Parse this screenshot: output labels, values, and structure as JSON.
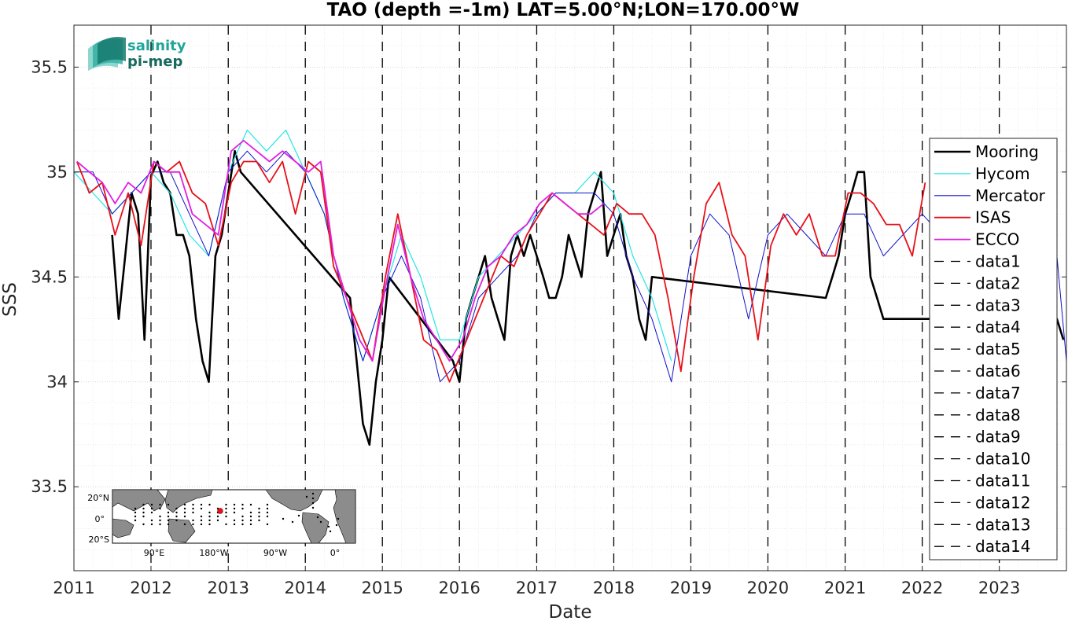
{
  "chart_data": {
    "type": "line",
    "title": "TAO (depth =-1m) LAT=5.00°N;LON=170.00°W",
    "xlabel": "Date",
    "ylabel": "SSS",
    "xlim": [
      "2011-01-01",
      "2023-11-15"
    ],
    "ylim": [
      33.1,
      35.7
    ],
    "x_ticks": [
      "2011",
      "2012",
      "2013",
      "2014",
      "2015",
      "2016",
      "2017",
      "2018",
      "2019",
      "2020",
      "2021",
      "2022",
      "2023"
    ],
    "y_ticks": [
      "33.5",
      "34",
      "34.5",
      "35",
      "35.5"
    ],
    "grid": true,
    "legend_position": "right",
    "legend": [
      "Mooring",
      "Hycom",
      "Mercator",
      "ISAS",
      "ECCO",
      "data1",
      "data2",
      "data3",
      "data4",
      "data5",
      "data6",
      "data7",
      "data8",
      "data9",
      "data10",
      "data11",
      "data12",
      "data13",
      "data14"
    ],
    "vertical_markers": [
      "2012-01-01",
      "2013-01-01",
      "2014-01-01",
      "2015-01-01",
      "2016-01-01",
      "2017-01-01",
      "2018-01-01",
      "2019-01-01",
      "2020-01-01",
      "2021-01-01",
      "2022-01-01",
      "2023-01-01"
    ],
    "series": [
      {
        "name": "Mooring",
        "color": "#000000",
        "x": [
          "2011-07-01",
          "2011-08-01",
          "2011-09-01",
          "2011-10-01",
          "2011-11-01",
          "2011-12-01",
          "2012-01-01",
          "2012-02-01",
          "2012-03-01",
          "2012-04-01",
          "2012-05-01",
          "2012-06-01",
          "2012-07-01",
          "2012-08-01",
          "2012-09-01",
          "2012-10-01",
          "2012-11-01",
          "2012-12-01",
          "2013-01-01",
          "2013-02-01",
          "2013-03-01",
          "2014-08-01",
          "2014-09-01",
          "2014-10-01",
          "2014-11-01",
          "2014-12-01",
          "2015-01-01",
          "2015-02-01",
          "2015-12-01",
          "2016-01-01",
          "2016-02-01",
          "2016-03-01",
          "2016-04-01",
          "2016-05-01",
          "2016-06-01",
          "2016-07-01",
          "2016-08-01",
          "2016-09-01",
          "2016-10-01",
          "2016-11-01",
          "2016-12-01",
          "2017-01-01",
          "2017-02-01",
          "2017-03-01",
          "2017-04-01",
          "2017-05-01",
          "2017-06-01",
          "2017-07-01",
          "2017-08-01",
          "2017-09-01",
          "2017-10-01",
          "2017-11-01",
          "2017-12-01",
          "2018-01-01",
          "2018-02-01",
          "2018-03-01",
          "2018-04-01",
          "2018-05-01",
          "2018-06-01",
          "2018-07-01",
          "2020-10-01",
          "2020-11-01",
          "2020-12-01",
          "2021-01-01",
          "2021-02-01",
          "2021-03-01",
          "2021-04-01",
          "2021-05-01",
          "2021-06-01",
          "2021-07-01",
          "2023-10-01",
          "2023-11-01"
        ],
        "y": [
          34.7,
          34.3,
          34.6,
          34.9,
          34.8,
          34.2,
          34.98,
          35.05,
          34.95,
          34.9,
          34.7,
          34.7,
          34.6,
          34.3,
          34.1,
          34.0,
          34.6,
          34.7,
          34.9,
          35.1,
          35.0,
          34.4,
          34.1,
          33.8,
          33.7,
          34.0,
          34.2,
          34.5,
          34.1,
          34.0,
          34.3,
          34.4,
          34.5,
          34.6,
          34.4,
          34.3,
          34.2,
          34.6,
          34.7,
          34.6,
          34.7,
          34.6,
          34.5,
          34.4,
          34.4,
          34.5,
          34.7,
          34.6,
          34.5,
          34.8,
          34.9,
          35.0,
          34.6,
          34.7,
          34.8,
          34.6,
          34.5,
          34.3,
          34.2,
          34.5,
          34.4,
          34.5,
          34.6,
          34.8,
          34.9,
          35.0,
          35.0,
          34.5,
          34.4,
          34.3,
          34.3,
          34.2
        ]
      },
      {
        "name": "Hycom",
        "color": "#22e6e6",
        "x": [
          "2011-01-01",
          "2011-04-01",
          "2011-07-01",
          "2011-10-01",
          "2012-01-01",
          "2012-04-01",
          "2012-07-01",
          "2012-10-01",
          "2013-01-01",
          "2013-04-01",
          "2013-07-01",
          "2013-10-01",
          "2014-01-01",
          "2014-04-01",
          "2014-07-01",
          "2014-10-01",
          "2015-01-01",
          "2015-04-01",
          "2015-07-01",
          "2015-10-01",
          "2016-01-01",
          "2016-04-01",
          "2016-07-01",
          "2016-10-01",
          "2017-01-01",
          "2017-04-01",
          "2017-07-01",
          "2017-10-01",
          "2018-01-01",
          "2018-04-01",
          "2018-07-01",
          "2018-10-01"
        ],
        "y": [
          35.0,
          34.9,
          34.8,
          34.9,
          35.0,
          34.9,
          34.7,
          34.6,
          35.0,
          35.2,
          35.1,
          35.2,
          35.0,
          34.8,
          34.4,
          34.1,
          34.4,
          34.7,
          34.5,
          34.2,
          34.2,
          34.5,
          34.6,
          34.7,
          34.8,
          34.9,
          34.9,
          35.0,
          34.9,
          34.6,
          34.4,
          34.1
        ]
      },
      {
        "name": "Mercator",
        "color": "#1010c8",
        "x": [
          "2011-01-01",
          "2011-04-01",
          "2011-07-01",
          "2011-10-01",
          "2012-01-01",
          "2012-04-01",
          "2012-07-01",
          "2012-10-01",
          "2013-01-01",
          "2013-04-01",
          "2013-07-01",
          "2013-10-01",
          "2014-01-01",
          "2014-04-01",
          "2014-07-01",
          "2014-10-01",
          "2015-01-01",
          "2015-04-01",
          "2015-07-01",
          "2015-10-01",
          "2016-01-01",
          "2016-04-01",
          "2016-07-01",
          "2016-10-01",
          "2017-01-01",
          "2017-04-01",
          "2017-07-01",
          "2017-10-01",
          "2018-01-01",
          "2018-04-01",
          "2018-07-01",
          "2018-10-01",
          "2019-01-01",
          "2019-04-01",
          "2019-07-01",
          "2019-10-01",
          "2020-01-01",
          "2020-04-01",
          "2020-07-01",
          "2020-10-01",
          "2021-01-01",
          "2021-04-01",
          "2021-07-01",
          "2021-10-01",
          "2022-01-01",
          "2022-04-01",
          "2022-07-01",
          "2022-10-01",
          "2023-01-01",
          "2023-04-01",
          "2023-07-01",
          "2023-10-01",
          "2023-11-15"
        ],
        "y": [
          35.0,
          35.0,
          34.8,
          34.9,
          35.0,
          35.0,
          34.8,
          34.6,
          35.0,
          35.1,
          35.0,
          35.1,
          35.0,
          34.8,
          34.4,
          34.1,
          34.4,
          34.6,
          34.4,
          34.0,
          34.1,
          34.4,
          34.5,
          34.6,
          34.8,
          34.9,
          34.9,
          34.9,
          34.8,
          34.5,
          34.3,
          34.0,
          34.6,
          34.8,
          34.7,
          34.3,
          34.7,
          34.8,
          34.7,
          34.6,
          34.8,
          34.8,
          34.6,
          34.7,
          34.8,
          34.7,
          34.8,
          34.8,
          34.9,
          34.8,
          34.9,
          34.6,
          34.1
        ]
      },
      {
        "name": "ISAS",
        "color": "#e8101a",
        "x": [
          "2011-01-15",
          "2011-03-15",
          "2011-05-15",
          "2011-07-15",
          "2011-09-15",
          "2011-11-15",
          "2012-01-15",
          "2012-03-15",
          "2012-05-15",
          "2012-07-15",
          "2012-09-15",
          "2012-11-15",
          "2013-01-15",
          "2013-03-15",
          "2013-05-15",
          "2013-07-15",
          "2013-09-15",
          "2013-11-15",
          "2014-01-15",
          "2014-03-15",
          "2014-05-15",
          "2014-07-15",
          "2014-09-15",
          "2014-11-15",
          "2015-01-15",
          "2015-03-15",
          "2015-05-15",
          "2015-07-15",
          "2015-09-15",
          "2015-11-15",
          "2016-01-15",
          "2016-03-15",
          "2016-05-15",
          "2016-07-15",
          "2016-09-15",
          "2016-11-15",
          "2017-01-15",
          "2017-03-15",
          "2017-05-15",
          "2017-07-15",
          "2017-09-15",
          "2017-11-15",
          "2018-01-15",
          "2018-03-15",
          "2018-05-15",
          "2018-07-15",
          "2018-09-15",
          "2018-11-15",
          "2019-01-15",
          "2019-03-15",
          "2019-05-15",
          "2019-07-15",
          "2019-09-15",
          "2019-11-15",
          "2020-01-15",
          "2020-03-15",
          "2020-05-15",
          "2020-07-15",
          "2020-09-15",
          "2020-11-15",
          "2021-01-15",
          "2021-03-15",
          "2021-05-15",
          "2021-07-15",
          "2021-09-15",
          "2021-11-15",
          "2022-01-15"
        ],
        "y": [
          35.05,
          34.9,
          34.95,
          34.7,
          34.9,
          34.65,
          35.05,
          35.0,
          35.05,
          34.9,
          34.85,
          34.65,
          34.95,
          35.05,
          35.05,
          34.95,
          35.05,
          34.8,
          35.05,
          35.0,
          34.55,
          34.4,
          34.25,
          34.1,
          34.5,
          34.8,
          34.5,
          34.2,
          34.15,
          34.0,
          34.15,
          34.3,
          34.45,
          34.6,
          34.55,
          34.7,
          34.8,
          34.9,
          34.85,
          34.8,
          34.75,
          34.7,
          34.85,
          34.8,
          34.8,
          34.7,
          34.4,
          34.05,
          34.5,
          34.85,
          34.95,
          34.7,
          34.6,
          34.2,
          34.65,
          34.8,
          34.7,
          34.8,
          34.6,
          34.6,
          34.9,
          34.9,
          34.85,
          34.75,
          34.75,
          34.6,
          34.95
        ]
      },
      {
        "name": "ECCO",
        "color": "#e020e0",
        "x": [
          "2011-01-15",
          "2011-03-15",
          "2011-05-15",
          "2011-07-15",
          "2011-09-15",
          "2011-11-15",
          "2012-01-15",
          "2012-03-15",
          "2012-05-15",
          "2012-07-15",
          "2012-09-15",
          "2012-11-15",
          "2013-01-15",
          "2013-03-15",
          "2013-05-15",
          "2013-07-15",
          "2013-09-15",
          "2013-11-15",
          "2014-01-15",
          "2014-03-15",
          "2014-05-15",
          "2014-07-15",
          "2014-09-15",
          "2014-11-15",
          "2015-01-15",
          "2015-03-15",
          "2015-05-15",
          "2015-07-15",
          "2015-09-15",
          "2015-11-15",
          "2016-01-15",
          "2016-03-15",
          "2016-05-15",
          "2016-07-15",
          "2016-09-15",
          "2016-11-15",
          "2017-01-15",
          "2017-03-15",
          "2017-05-15",
          "2017-07-15",
          "2017-09-15",
          "2017-11-15"
        ],
        "y": [
          35.05,
          35.0,
          34.95,
          34.85,
          34.95,
          34.9,
          35.05,
          35.0,
          35.0,
          34.8,
          34.75,
          34.7,
          35.1,
          35.15,
          35.1,
          35.05,
          35.1,
          35.05,
          35.0,
          35.05,
          34.6,
          34.4,
          34.2,
          34.1,
          34.45,
          34.75,
          34.5,
          34.3,
          34.2,
          34.1,
          34.2,
          34.4,
          34.55,
          34.6,
          34.7,
          34.75,
          34.85,
          34.9,
          34.85,
          34.8,
          34.8,
          34.85
        ]
      }
    ]
  },
  "inset_map": {
    "lat_labels": [
      "20°N",
      "0°",
      "20°S"
    ],
    "lon_labels": [
      "90°E",
      "180°W",
      "90°W",
      "0°"
    ]
  },
  "logo": {
    "line1": "salinity",
    "line2": "pi-mep"
  }
}
